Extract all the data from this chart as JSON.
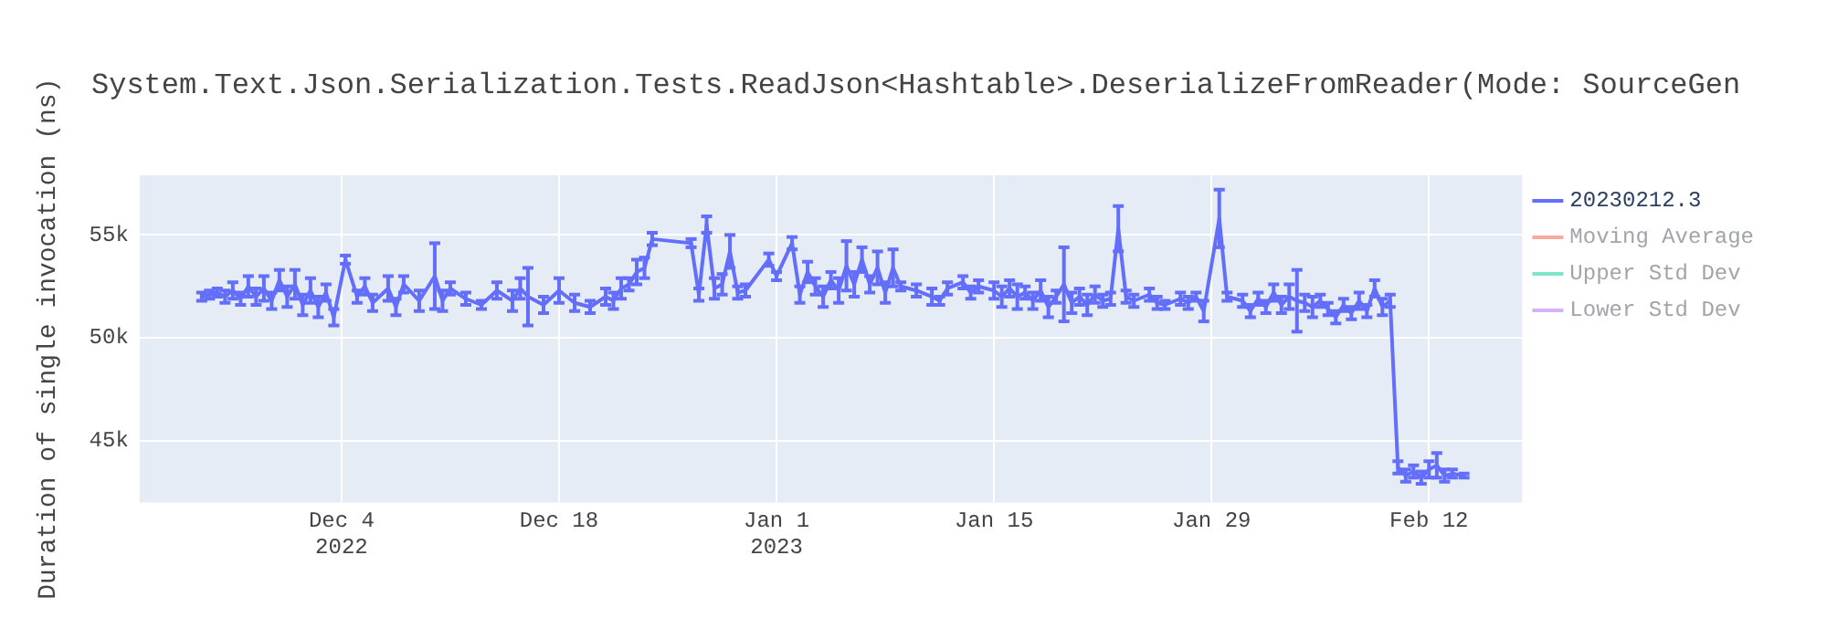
{
  "chart_data": {
    "type": "line",
    "title": "System.Text.Json.Serialization.Tests.ReadJson<Hashtable>.DeserializeFromReader(Mode: SourceGen",
    "ylabel": "Duration of single invocation (ns)",
    "x": [
      "2022-11-25T00:00",
      "2022-11-25T12:00",
      "2022-11-26T00:00",
      "2022-11-26T12:00",
      "2022-11-27T00:00",
      "2022-11-27T12:00",
      "2022-11-28T00:00",
      "2022-11-28T12:00",
      "2022-11-29T00:00",
      "2022-11-29T12:00",
      "2022-11-30T00:00",
      "2022-11-30T12:00",
      "2022-12-01T00:00",
      "2022-12-01T12:00",
      "2022-12-02T00:00",
      "2022-12-02T12:00",
      "2022-12-03T00:00",
      "2022-12-03T12:00",
      "2022-12-04T06:00",
      "2022-12-05T00:00",
      "2022-12-05T12:00",
      "2022-12-06T00:00",
      "2022-12-07T00:00",
      "2022-12-07T12:00",
      "2022-12-08T00:00",
      "2022-12-09T00:00",
      "2022-12-10T00:00",
      "2022-12-10T12:00",
      "2022-12-11T00:00",
      "2022-12-12T00:00",
      "2022-12-13T00:00",
      "2022-12-14T00:00",
      "2022-12-15T00:00",
      "2022-12-15T12:00",
      "2022-12-16T00:00",
      "2022-12-17T00:00",
      "2022-12-18T00:00",
      "2022-12-19T00:00",
      "2022-12-20T00:00",
      "2022-12-21T00:00",
      "2022-12-21T12:00",
      "2022-12-22T00:00",
      "2022-12-22T12:00",
      "2022-12-23T00:00",
      "2022-12-23T12:00",
      "2022-12-24T00:00",
      "2022-12-26T12:00",
      "2022-12-27T00:00",
      "2022-12-27T12:00",
      "2022-12-28T00:00",
      "2022-12-28T12:00",
      "2022-12-29T00:00",
      "2022-12-29T12:00",
      "2022-12-30T00:00",
      "2022-12-31T12:00",
      "2023-01-01T00:00",
      "2023-01-02T00:00",
      "2023-01-02T12:00",
      "2023-01-03T00:00",
      "2023-01-03T12:00",
      "2023-01-04T00:00",
      "2023-01-04T12:00",
      "2023-01-05T00:00",
      "2023-01-05T12:00",
      "2023-01-06T00:00",
      "2023-01-06T12:00",
      "2023-01-07T00:00",
      "2023-01-07T12:00",
      "2023-01-08T00:00",
      "2023-01-08T12:00",
      "2023-01-09T00:00",
      "2023-01-10T00:00",
      "2023-01-11T00:00",
      "2023-01-11T12:00",
      "2023-01-12T00:00",
      "2023-01-13T00:00",
      "2023-01-13T12:00",
      "2023-01-14T00:00",
      "2023-01-15T00:00",
      "2023-01-15T12:00",
      "2023-01-16T00:00",
      "2023-01-16T12:00",
      "2023-01-17T00:00",
      "2023-01-17T12:00",
      "2023-01-18T00:00",
      "2023-01-18T12:00",
      "2023-01-19T00:00",
      "2023-01-19T12:00",
      "2023-01-20T00:00",
      "2023-01-20T12:00",
      "2023-01-21T00:00",
      "2023-01-21T12:00",
      "2023-01-22T00:00",
      "2023-01-22T12:00",
      "2023-01-23T00:00",
      "2023-01-23T12:00",
      "2023-01-24T00:00",
      "2023-01-25T00:00",
      "2023-01-25T12:00",
      "2023-01-26T00:00",
      "2023-01-27T00:00",
      "2023-01-27T12:00",
      "2023-01-28T00:00",
      "2023-01-28T12:00",
      "2023-01-29T12:00",
      "2023-01-30T00:00",
      "2023-01-31T00:00",
      "2023-01-31T12:00",
      "2023-02-01T00:00",
      "2023-02-01T12:00",
      "2023-02-02T00:00",
      "2023-02-02T12:00",
      "2023-02-03T00:00",
      "2023-02-03T12:00",
      "2023-02-04T00:00",
      "2023-02-04T12:00",
      "2023-02-05T00:00",
      "2023-02-05T12:00",
      "2023-02-06T00:00",
      "2023-02-06T12:00",
      "2023-02-07T00:00",
      "2023-02-07T12:00",
      "2023-02-08T00:00",
      "2023-02-08T12:00",
      "2023-02-09T00:00",
      "2023-02-09T12:00",
      "2023-02-10T00:00",
      "2023-02-10T12:00",
      "2023-02-11T00:00",
      "2023-02-11T12:00",
      "2023-02-12T00:00",
      "2023-02-12T12:00",
      "2023-02-13T00:00",
      "2023-02-13T12:00",
      "2023-02-14T06:00"
    ],
    "series": [
      {
        "name": "20230212.3",
        "color": "#636efa",
        "values": [
          52000,
          52100,
          52200,
          52000,
          52300,
          51900,
          52500,
          52000,
          52400,
          51800,
          52800,
          52000,
          52600,
          51600,
          52300,
          51500,
          52200,
          51000,
          53800,
          52000,
          52500,
          51700,
          52400,
          51500,
          52600,
          51800,
          53000,
          51800,
          52400,
          51900,
          51600,
          52300,
          51800,
          52400,
          52000,
          51600,
          52300,
          51700,
          51500,
          52000,
          51800,
          52400,
          52600,
          53200,
          53400,
          54800,
          54600,
          52100,
          55500,
          52400,
          52600,
          54200,
          52200,
          52300,
          53800,
          53000,
          54600,
          52100,
          53200,
          52500,
          52000,
          52800,
          52300,
          53500,
          52600,
          53800,
          52600,
          53400,
          52200,
          53400,
          52500,
          52300,
          52000,
          51800,
          52400,
          52700,
          52200,
          52500,
          52300,
          52000,
          52400,
          52000,
          52200,
          51800,
          52300,
          51500,
          52000,
          52600,
          51700,
          52000,
          51600,
          52100,
          51800,
          51900,
          55300,
          52000,
          51800,
          52100,
          51700,
          51600,
          51900,
          51700,
          52000,
          51300,
          55800,
          52000,
          51800,
          51300,
          51900,
          51500,
          52200,
          51600,
          52000,
          51800,
          51700,
          51500,
          51800,
          51400,
          51000,
          51600,
          51200,
          51800,
          51300,
          52400,
          51500,
          51800,
          43700,
          43300,
          43500,
          43200,
          43600,
          43800,
          43300,
          43400,
          43300
        ],
        "errors": [
          200,
          200,
          200,
          300,
          400,
          300,
          500,
          400,
          600,
          400,
          500,
          500,
          700,
          500,
          600,
          500,
          400,
          400,
          200,
          300,
          400,
          400,
          600,
          400,
          400,
          500,
          1600,
          500,
          300,
          300,
          200,
          400,
          500,
          500,
          1400,
          400,
          600,
          400,
          300,
          400,
          400,
          500,
          300,
          600,
          500,
          300,
          200,
          300,
          400,
          500,
          500,
          800,
          300,
          300,
          300,
          200,
          300,
          400,
          500,
          400,
          500,
          400,
          600,
          1200,
          600,
          600,
          400,
          800,
          500,
          900,
          200,
          300,
          400,
          200,
          300,
          300,
          300,
          300,
          400,
          500,
          400,
          600,
          300,
          400,
          500,
          500,
          300,
          1800,
          500,
          400,
          500,
          400,
          300,
          300,
          1100,
          300,
          300,
          300,
          300,
          200,
          300,
          300,
          200,
          500,
          1400,
          200,
          300,
          300,
          300,
          300,
          400,
          400,
          600,
          1500,
          400,
          500,
          300,
          300,
          300,
          300,
          300,
          400,
          300,
          400,
          400,
          300,
          300,
          300,
          300,
          300,
          400,
          600,
          300,
          200,
          100
        ]
      },
      {
        "name": "Moving Average",
        "color": "#ef553b",
        "values": [
          null,
          null,
          null,
          null,
          null,
          null,
          null,
          null,
          null,
          null,
          null,
          null,
          null,
          null,
          null,
          null,
          null,
          null,
          null,
          null,
          null,
          null,
          null,
          null,
          null,
          null,
          null,
          null,
          null,
          null,
          null,
          null,
          null,
          null,
          null,
          null,
          null,
          null,
          null,
          null,
          null,
          null,
          null,
          null,
          null,
          null,
          null,
          null,
          null,
          null,
          null,
          null,
          null,
          null,
          null,
          null,
          null,
          null,
          null,
          null,
          null,
          null,
          null,
          null,
          null,
          null,
          null,
          null,
          null,
          null,
          null,
          null,
          null,
          null,
          null,
          null,
          null,
          null,
          null,
          null,
          null,
          null,
          null,
          null,
          null,
          null,
          null,
          null,
          null,
          null,
          null,
          null,
          null,
          null,
          null,
          null,
          null,
          null,
          null,
          null,
          null,
          null,
          null,
          null,
          null,
          null,
          null,
          null,
          null,
          null,
          null,
          null,
          null,
          null,
          null,
          null,
          null,
          null,
          null,
          null,
          null,
          null,
          null,
          null,
          null,
          null,
          null,
          null,
          null,
          null,
          null,
          null,
          null,
          null,
          null
        ]
      },
      {
        "name": "Upper Std Dev",
        "color": "#00cc96",
        "values": [
          null,
          null,
          null,
          null,
          null,
          null,
          null,
          null,
          null,
          null,
          null,
          null,
          null,
          null,
          null,
          null,
          null,
          null,
          null,
          null,
          null,
          null,
          null,
          null,
          null,
          null,
          null,
          null,
          null,
          null,
          null,
          null,
          null,
          null,
          null,
          null,
          null,
          null,
          null,
          null,
          null,
          null,
          null,
          null,
          null,
          null,
          null,
          null,
          null,
          null,
          null,
          null,
          null,
          null,
          null,
          null,
          null,
          null,
          null,
          null,
          null,
          null,
          null,
          null,
          null,
          null,
          null,
          null,
          null,
          null,
          null,
          null,
          null,
          null,
          null,
          null,
          null,
          null,
          null,
          null,
          null,
          null,
          null,
          null,
          null,
          null,
          null,
          null,
          null,
          null,
          null,
          null,
          null,
          null,
          null,
          null,
          null,
          null,
          null,
          null,
          null,
          null,
          null,
          null,
          null,
          null,
          null,
          null,
          null,
          null,
          null,
          null,
          null,
          null,
          null,
          null,
          null,
          null,
          null,
          null,
          null,
          null,
          null,
          null,
          null,
          null,
          null,
          null,
          null,
          null,
          null,
          null,
          null,
          null,
          null
        ]
      },
      {
        "name": "Lower Std Dev",
        "color": "#ab63fa",
        "values": [
          null,
          null,
          null,
          null,
          null,
          null,
          null,
          null,
          null,
          null,
          null,
          null,
          null,
          null,
          null,
          null,
          null,
          null,
          null,
          null,
          null,
          null,
          null,
          null,
          null,
          null,
          null,
          null,
          null,
          null,
          null,
          null,
          null,
          null,
          null,
          null,
          null,
          null,
          null,
          null,
          null,
          null,
          null,
          null,
          null,
          null,
          null,
          null,
          null,
          null,
          null,
          null,
          null,
          null,
          null,
          null,
          null,
          null,
          null,
          null,
          null,
          null,
          null,
          null,
          null,
          null,
          null,
          null,
          null,
          null,
          null,
          null,
          null,
          null,
          null,
          null,
          null,
          null,
          null,
          null,
          null,
          null,
          null,
          null,
          null,
          null,
          null,
          null,
          null,
          null,
          null,
          null,
          null,
          null,
          null,
          null,
          null,
          null,
          null,
          null,
          null,
          null,
          null,
          null,
          null,
          null,
          null,
          null,
          null,
          null,
          null,
          null,
          null,
          null,
          null,
          null,
          null,
          null,
          null,
          null,
          null,
          null,
          null,
          null,
          null,
          null,
          null,
          null,
          null,
          null,
          null,
          null,
          null,
          null,
          null
        ]
      }
    ],
    "xlim": [
      "2022-11-21T00:00",
      "2023-02-18T00:00"
    ],
    "xticks": [
      {
        "value": "2022-12-04",
        "label": "Dec 4\n2022"
      },
      {
        "value": "2022-12-18",
        "label": "Dec 18"
      },
      {
        "value": "2023-01-01",
        "label": "Jan 1\n2023"
      },
      {
        "value": "2023-01-15",
        "label": "Jan 15"
      },
      {
        "value": "2023-01-29",
        "label": "Jan 29"
      },
      {
        "value": "2023-02-12",
        "label": "Feb 12"
      }
    ],
    "ylim": [
      42000,
      57900
    ],
    "yticks": [
      {
        "value": 45000,
        "label": "45k"
      },
      {
        "value": 50000,
        "label": "50k"
      },
      {
        "value": 55000,
        "label": "55k"
      }
    ],
    "grid": true,
    "legend": "top right",
    "line_style": "solid"
  }
}
